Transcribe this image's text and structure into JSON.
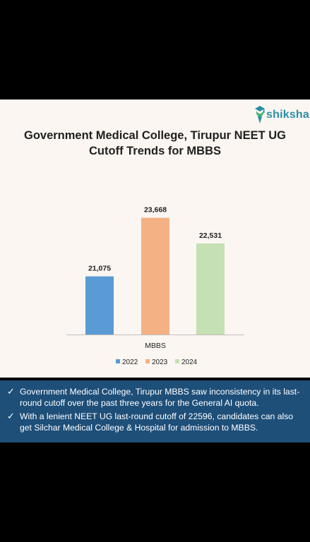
{
  "brand": {
    "name": "shiksha",
    "icon": "graduate-icon",
    "color": "#2a8ea6"
  },
  "title_line1": "Government Medical College, Tirupur NEET UG",
  "title_line2": "Cutoff Trends for MBBS",
  "chart_data": {
    "type": "bar",
    "title": "Government Medical College, Tirupur NEET UG Cutoff Trends for MBBS",
    "categories": [
      "MBBS"
    ],
    "series": [
      {
        "name": "2022",
        "values": [
          21075
        ],
        "label": "21,075",
        "color": "#5b9bd5"
      },
      {
        "name": "2023",
        "values": [
          23668
        ],
        "label": "23,668",
        "color": "#f4b183"
      },
      {
        "name": "2024",
        "values": [
          22531
        ],
        "label": "22,531",
        "color": "#c5e0b4"
      }
    ],
    "xlabel": "",
    "ylabel": "",
    "ylim": [
      18500,
      25000
    ],
    "grid": false,
    "legend": "bottom"
  },
  "notes": [
    {
      "check": "✓",
      "text": "Government Medical College, Tirupur MBBS saw inconsistency in its last-round cutoff over the past three years for the General AI quota."
    },
    {
      "check": "✓",
      "text": "With a lenient NEET UG last-round cutoff of 22596, candidates can also get Silchar Medical College & Hospital for admission to MBBS."
    }
  ]
}
